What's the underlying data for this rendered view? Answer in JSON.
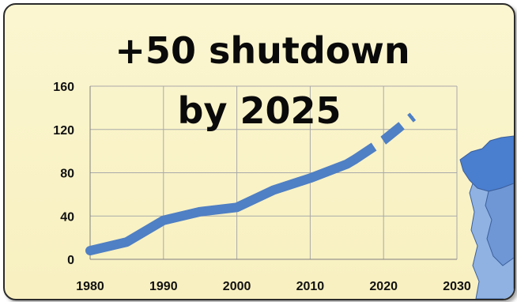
{
  "chart_data": {
    "type": "line",
    "title": [
      "+50 shutdown",
      "by 2025"
    ],
    "xlabel": "",
    "ylabel": "",
    "xlim": [
      1980,
      2030
    ],
    "ylim": [
      0,
      160
    ],
    "x_ticks": [
      1980,
      1990,
      2000,
      2010,
      2020,
      2030
    ],
    "y_ticks": [
      0,
      40,
      80,
      120,
      160
    ],
    "x_tick_labels": [
      "1980",
      "1990",
      "2000",
      "2010",
      "2020",
      "2030"
    ],
    "grid": true,
    "series": [
      {
        "style": "solid",
        "color": "#4f7fc4",
        "x": [
          1980,
          1985,
          1990,
          1995,
          2000,
          2005,
          2010,
          2015,
          2016
        ],
        "y": [
          8,
          16,
          36,
          44,
          48,
          64,
          75,
          88,
          92
        ]
      },
      {
        "style": "dashed",
        "color": "#4f7fc4",
        "x": [
          2016,
          2020,
          2024
        ],
        "y": [
          92,
          110,
          132
        ]
      }
    ]
  },
  "colors": {
    "background": "#f8f0c0",
    "line": "#4f7fc4",
    "map_light": "#8fb2e3",
    "map_dark": "#4a7ecf"
  },
  "decoration": {
    "map_icon": "iberian-peninsula-map-icon"
  }
}
